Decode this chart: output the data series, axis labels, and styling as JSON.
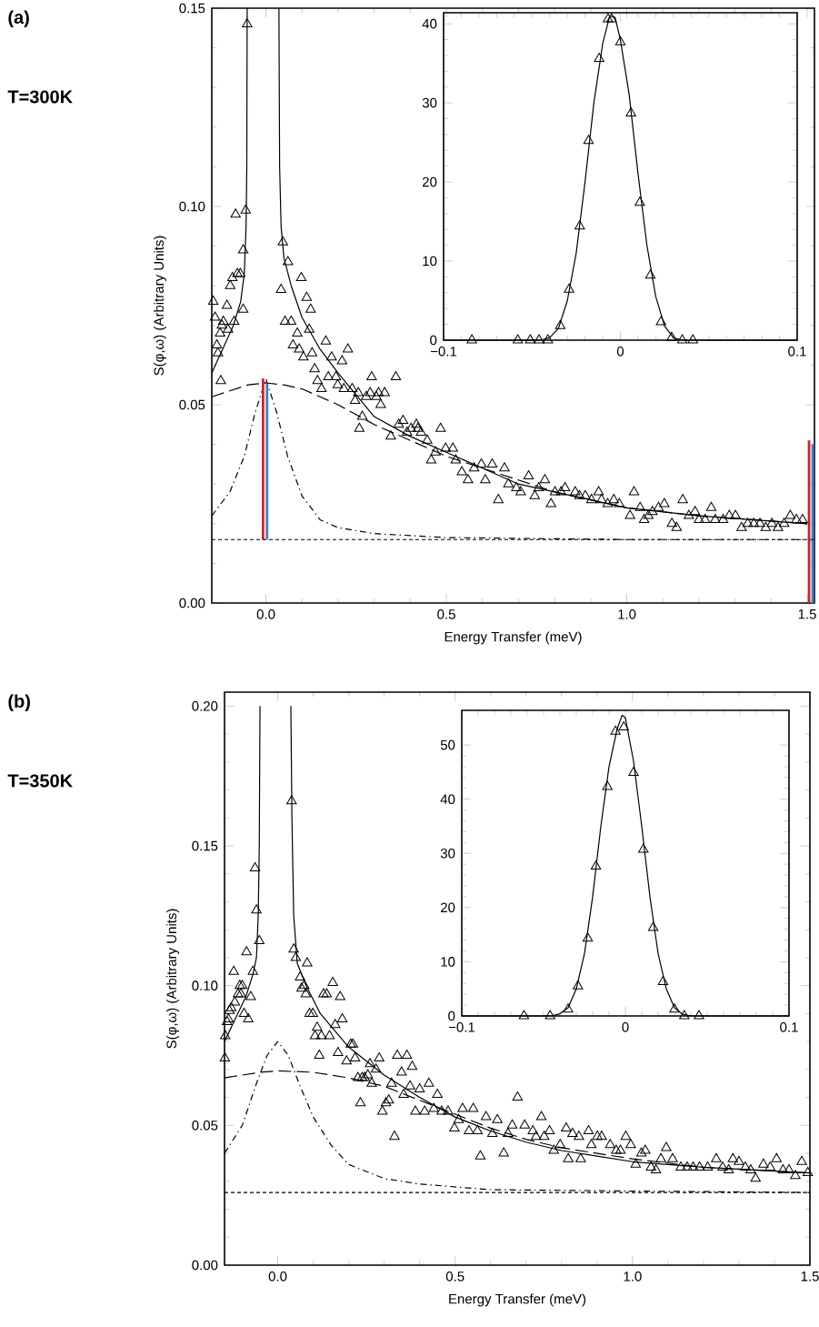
{
  "chart_data": [
    {
      "type": "scatter",
      "xlabel": "Energy Transfer (meV)",
      "ylabel": "S(φ,ω) (Arbitrary Units)",
      "annotations": [
        "(a)",
        "T=300K"
      ],
      "xlim": [
        -0.15,
        1.52
      ],
      "ylim": [
        0,
        0.15
      ],
      "xticks": [
        {
          "value": 0,
          "label": "0.0"
        },
        {
          "value": 0.5,
          "label": "0.5"
        },
        {
          "value": 1,
          "label": "1.0"
        },
        {
          "value": 1.5,
          "label": "1.5"
        }
      ],
      "yticks": [
        {
          "value": 0,
          "label": "0.00"
        },
        {
          "value": 0.05,
          "label": "0.05"
        },
        {
          "value": 0.1,
          "label": "0.10"
        },
        {
          "value": 0.15,
          "label": "0.15"
        }
      ],
      "ref_lines": [
        {
          "axis": "y",
          "value": 0.016,
          "line_style": "dotted",
          "color": "#000000"
        }
      ],
      "series": [
        {
          "type": "scatter",
          "marker": "triangle",
          "color": "#000000",
          "x": [
            -0.146,
            -0.141,
            -0.136,
            -0.133,
            -0.127,
            -0.122,
            -0.125,
            -0.108,
            -0.118,
            -0.105,
            -0.099,
            -0.093,
            -0.088,
            -0.079,
            -0.071,
            -0.063,
            -0.084,
            -0.056,
            -0.063,
            -0.052,
            0.042,
            0.047,
            0.061,
            0.053,
            0.07,
            0.075,
            0.087,
            0.092,
            0.098,
            0.104,
            0.113,
            0.12,
            0.124,
            0.128,
            0.135,
            0.143,
            0.154,
            0.166,
            0.173,
            0.182,
            0.194,
            0.199,
            0.211,
            0.216,
            0.227,
            0.239,
            0.247,
            0.256,
            0.259,
            0.267,
            0.278,
            0.289,
            0.293,
            0.306,
            0.312,
            0.318,
            0.329,
            0.346,
            0.36,
            0.368,
            0.38,
            0.391,
            0.402,
            0.417,
            0.421,
            0.43,
            0.447,
            0.458,
            0.47,
            0.484,
            0.498,
            0.518,
            0.526,
            0.543,
            0.56,
            0.577,
            0.597,
            0.608,
            0.627,
            0.644,
            0.661,
            0.672,
            0.694,
            0.706,
            0.728,
            0.745,
            0.756,
            0.773,
            0.79,
            0.801,
            0.818,
            0.829,
            0.857,
            0.869,
            0.885,
            0.902,
            0.922,
            0.93,
            0.947,
            0.964,
            0.979,
            1.009,
            1.02,
            1.037,
            1.048,
            1.06,
            1.071,
            1.088,
            1.104,
            1.125,
            1.138,
            1.155,
            1.172,
            1.189,
            1.2,
            1.217,
            1.234,
            1.245,
            1.267,
            1.284,
            1.301,
            1.318,
            1.335,
            1.352,
            1.369,
            1.385,
            1.402,
            1.419,
            1.436,
            1.453,
            1.47,
            1.487
          ],
          "values": [
            0.076,
            0.072,
            0.065,
            0.063,
            0.068,
            0.07,
            0.056,
            0.075,
            0.071,
            0.069,
            0.08,
            0.082,
            0.071,
            0.083,
            0.083,
            0.074,
            0.098,
            0.099,
            0.089,
            0.146,
            0.079,
            0.091,
            0.086,
            0.071,
            0.071,
            0.065,
            0.068,
            0.064,
            0.082,
            0.062,
            0.077,
            0.069,
            0.074,
            0.063,
            0.059,
            0.056,
            0.054,
            0.066,
            0.057,
            0.062,
            0.057,
            0.055,
            0.061,
            0.054,
            0.064,
            0.054,
            0.051,
            0.053,
            0.044,
            0.047,
            0.052,
            0.053,
            0.057,
            0.052,
            0.053,
            0.05,
            0.053,
            0.042,
            0.057,
            0.045,
            0.046,
            0.043,
            0.044,
            0.045,
            0.044,
            0.043,
            0.041,
            0.036,
            0.038,
            0.044,
            0.039,
            0.039,
            0.036,
            0.033,
            0.031,
            0.034,
            0.035,
            0.031,
            0.035,
            0.026,
            0.034,
            0.03,
            0.029,
            0.028,
            0.032,
            0.027,
            0.029,
            0.031,
            0.025,
            0.028,
            0.028,
            0.029,
            0.028,
            0.027,
            0.027,
            0.026,
            0.028,
            0.026,
            0.025,
            0.026,
            0.025,
            0.022,
            0.028,
            0.024,
            0.021,
            0.022,
            0.023,
            0.024,
            0.025,
            0.02,
            0.019,
            0.026,
            0.022,
            0.023,
            0.021,
            0.021,
            0.024,
            0.021,
            0.021,
            0.022,
            0.022,
            0.019,
            0.02,
            0.02,
            0.02,
            0.019,
            0.02,
            0.019,
            0.02,
            0.022,
            0.021,
            0.021
          ]
        },
        {
          "type": "line",
          "line_style": "solid",
          "color": "#000000",
          "x": [
            -0.15,
            -0.12,
            -0.09,
            -0.07,
            -0.06,
            -0.055,
            -0.053,
            -0.052,
            0,
            0.036,
            0.038,
            0.042,
            0.05,
            0.07,
            0.1,
            0.15,
            0.2,
            0.3,
            0.4,
            0.5,
            0.6,
            0.7,
            0.8,
            0.9,
            1.0,
            1.2,
            1.5
          ],
          "values": [
            0.058,
            0.064,
            0.07,
            0.076,
            0.083,
            0.095,
            0.11,
            0.15,
            null,
            0.15,
            0.11,
            0.095,
            0.087,
            0.08,
            0.072,
            0.064,
            0.058,
            0.047,
            0.042,
            0.038,
            0.034,
            0.03,
            0.028,
            0.026,
            0.024,
            0.022,
            0.02
          ]
        },
        {
          "type": "line",
          "line_style": "dashed",
          "color": "#000000",
          "x": [
            -0.15,
            -0.05,
            0,
            0.05,
            0.1,
            0.2,
            0.3,
            0.4,
            0.5,
            0.6,
            0.8,
            1.0,
            1.2,
            1.5
          ],
          "values": [
            0.052,
            0.055,
            0.0555,
            0.055,
            0.054,
            0.05,
            0.045,
            0.041,
            0.037,
            0.034,
            0.028,
            0.024,
            0.022,
            0.02
          ]
        },
        {
          "type": "line",
          "line_style": "dashdot",
          "color": "#000000",
          "x": [
            -0.15,
            -0.1,
            -0.06,
            -0.03,
            0,
            0.03,
            0.06,
            0.1,
            0.15,
            0.2,
            0.3,
            0.5,
            1.0,
            1.5
          ],
          "values": [
            0.022,
            0.028,
            0.037,
            0.048,
            0.0565,
            0.048,
            0.037,
            0.027,
            0.021,
            0.019,
            0.0175,
            0.0165,
            0.016,
            0.016
          ]
        },
        {
          "type": "line",
          "line_style": "solid",
          "color": "#d0202a",
          "x": [
            -0.008,
            -0.008
          ],
          "values": [
            0.016,
            0.0566
          ]
        },
        {
          "type": "line",
          "line_style": "solid",
          "color": "#2f86d6",
          "x": [
            0.003,
            0.003
          ],
          "values": [
            0.016,
            0.0554
          ]
        },
        {
          "type": "line",
          "line_style": "solid",
          "color": "#d0202a",
          "x": [
            1.505,
            1.505
          ],
          "values": [
            0,
            0.041
          ]
        },
        {
          "type": "line",
          "line_style": "solid",
          "color": "#2f86d6",
          "x": [
            1.515,
            1.515
          ],
          "values": [
            0,
            0.04
          ]
        }
      ]
    },
    {
      "type": "scatter",
      "xlim": [
        -0.1,
        0.1
      ],
      "ylim": [
        0,
        41.4
      ],
      "xticks": [
        {
          "value": -0.1,
          "label": "−0.1"
        },
        0,
        0.1
      ],
      "yticks": [
        0,
        10,
        20,
        30,
        40
      ],
      "series": [
        {
          "type": "scatter",
          "marker": "triangle",
          "color": "#000000",
          "x": [
            -0.084,
            -0.058,
            -0.051,
            -0.046,
            -0.041,
            -0.034,
            -0.029,
            -0.023,
            -0.018,
            -0.012,
            -0.007,
            -0.005,
            0.0,
            0.006,
            0.011,
            0.017,
            0.023,
            0.029,
            0.035,
            0.041
          ],
          "values": [
            0,
            0,
            0,
            0,
            0,
            1.8,
            6.4,
            14.4,
            25.2,
            35.6,
            40.6,
            40.6,
            37.7,
            28.7,
            17.4,
            8.2,
            2.3,
            0.3,
            0,
            0
          ]
        },
        {
          "type": "line",
          "line_style": "solid",
          "color": "#000000",
          "x": [
            -0.1,
            -0.045,
            -0.04,
            -0.035,
            -0.03,
            -0.025,
            -0.02,
            -0.015,
            -0.01,
            -0.006,
            -0.003,
            0,
            0.005,
            0.01,
            0.015,
            0.02,
            0.025,
            0.03,
            0.035,
            0.1
          ],
          "values": [
            0,
            0,
            0.3,
            1.5,
            5,
            11,
            20,
            30,
            37.5,
            41,
            40.8,
            38,
            31,
            21,
            12,
            5.5,
            1.8,
            0.3,
            0,
            0
          ]
        }
      ]
    },
    {
      "type": "scatter",
      "xlabel": "Energy Transfer (meV)",
      "ylabel": "S(φ,ω) (Arbitrary Units)",
      "annotations": [
        "(b)",
        "T=350K"
      ],
      "xlim": [
        -0.15,
        1.5
      ],
      "ylim": [
        0,
        0.205
      ],
      "xticks": [
        {
          "value": 0,
          "label": "0.0"
        },
        {
          "value": 0.5,
          "label": "0.5"
        },
        {
          "value": 1,
          "label": "1.0"
        },
        {
          "value": 1.5,
          "label": "1.5"
        }
      ],
      "yticks": [
        {
          "value": 0,
          "label": "0.00"
        },
        {
          "value": 0.05,
          "label": "0.05"
        },
        {
          "value": 0.1,
          "label": "0.10"
        },
        {
          "value": 0.15,
          "label": "0.15"
        },
        {
          "value": 0.2,
          "label": "0.20"
        }
      ],
      "ref_lines": [
        {
          "axis": "y",
          "value": 0.026,
          "line_style": "dotted",
          "color": "#000000"
        }
      ],
      "series": [
        {
          "type": "scatter",
          "marker": "triangle",
          "color": "#000000",
          "x": [
            -0.149,
            -0.148,
            -0.143,
            -0.139,
            -0.136,
            -0.131,
            -0.124,
            -0.121,
            -0.112,
            -0.107,
            -0.104,
            -0.1,
            -0.095,
            -0.088,
            -0.083,
            -0.076,
            -0.07,
            -0.064,
            -0.06,
            -0.052,
            0.039,
            0.045,
            0.051,
            0.063,
            0.067,
            0.075,
            0.079,
            0.083,
            0.09,
            0.099,
            0.105,
            0.111,
            0.117,
            0.123,
            0.129,
            0.138,
            0.146,
            0.155,
            0.162,
            0.17,
            0.176,
            0.182,
            0.194,
            0.206,
            0.212,
            0.218,
            0.226,
            0.233,
            0.238,
            0.245,
            0.254,
            0.26,
            0.265,
            0.277,
            0.286,
            0.295,
            0.305,
            0.313,
            0.321,
            0.329,
            0.337,
            0.349,
            0.355,
            0.364,
            0.373,
            0.379,
            0.388,
            0.4,
            0.414,
            0.426,
            0.44,
            0.45,
            0.462,
            0.48,
            0.498,
            0.51,
            0.521,
            0.539,
            0.551,
            0.563,
            0.571,
            0.587,
            0.605,
            0.619,
            0.637,
            0.649,
            0.661,
            0.676,
            0.696,
            0.719,
            0.728,
            0.743,
            0.751,
            0.766,
            0.778,
            0.796,
            0.813,
            0.819,
            0.831,
            0.849,
            0.854,
            0.876,
            0.884,
            0.901,
            0.913,
            0.937,
            0.954,
            0.966,
            0.981,
            0.995,
            1.009,
            1.025,
            1.036,
            1.052,
            1.066,
            1.08,
            1.095,
            1.113,
            1.136,
            1.154,
            1.171,
            1.189,
            1.212,
            1.236,
            1.254,
            1.271,
            1.283,
            1.3,
            1.318,
            1.333,
            1.347,
            1.369,
            1.388,
            1.406,
            1.424,
            1.441,
            1.459,
            1.477,
            1.494
          ],
          "values": [
            0.074,
            0.082,
            0.087,
            0.088,
            0.091,
            0.092,
            0.105,
            0.094,
            0.097,
            0.1,
            0.097,
            0.1,
            0.09,
            0.112,
            0.088,
            0.096,
            0.105,
            0.142,
            0.127,
            0.116,
            0.166,
            0.113,
            0.11,
            0.103,
            0.099,
            0.1,
            0.097,
            0.108,
            0.09,
            0.09,
            0.082,
            0.085,
            0.075,
            0.082,
            0.097,
            0.097,
            0.082,
            0.101,
            0.086,
            0.076,
            0.096,
            0.088,
            0.073,
            0.079,
            0.079,
            0.074,
            0.067,
            0.058,
            0.067,
            0.067,
            0.068,
            0.072,
            0.065,
            0.07,
            0.074,
            0.055,
            0.058,
            0.059,
            0.065,
            0.046,
            0.075,
            0.069,
            0.061,
            0.075,
            0.064,
            0.071,
            0.055,
            0.063,
            0.055,
            0.065,
            0.056,
            0.061,
            0.055,
            0.055,
            0.049,
            0.052,
            0.056,
            0.048,
            0.056,
            0.048,
            0.039,
            0.053,
            0.047,
            0.052,
            0.04,
            0.047,
            0.05,
            0.06,
            0.05,
            0.048,
            0.046,
            0.053,
            0.046,
            0.048,
            0.041,
            0.043,
            0.049,
            0.038,
            0.047,
            0.046,
            0.038,
            0.048,
            0.043,
            0.046,
            0.046,
            0.043,
            0.041,
            0.041,
            0.046,
            0.043,
            0.036,
            0.04,
            0.041,
            0.035,
            0.034,
            0.038,
            0.042,
            0.038,
            0.035,
            0.035,
            0.035,
            0.035,
            0.035,
            0.038,
            0.035,
            0.034,
            0.038,
            0.037,
            0.035,
            0.034,
            0.031,
            0.036,
            0.035,
            0.038,
            0.034,
            0.034,
            0.032,
            0.037,
            0.033
          ]
        },
        {
          "type": "line",
          "line_style": "solid",
          "color": "#000000",
          "x": [
            -0.15,
            -0.12,
            -0.09,
            -0.07,
            -0.06,
            -0.055,
            -0.052,
            -0.05,
            0,
            0.037,
            0.04,
            0.045,
            0.055,
            0.08,
            0.12,
            0.2,
            0.3,
            0.4,
            0.5,
            0.6,
            0.7,
            0.8,
            0.9,
            1.0,
            1.2,
            1.5
          ],
          "values": [
            0.08,
            0.088,
            0.096,
            0.104,
            0.11,
            0.125,
            0.15,
            0.2,
            null,
            0.2,
            0.16,
            0.125,
            0.108,
            0.1,
            0.09,
            0.078,
            0.068,
            0.06,
            0.053,
            0.048,
            0.044,
            0.041,
            0.039,
            0.037,
            0.035,
            0.033
          ]
        },
        {
          "type": "line",
          "line_style": "dashed",
          "color": "#000000",
          "x": [
            -0.15,
            -0.05,
            0,
            0.1,
            0.2,
            0.3,
            0.4,
            0.5,
            0.6,
            0.7,
            0.8,
            1.0,
            1.2,
            1.5
          ],
          "values": [
            0.067,
            0.069,
            0.0695,
            0.069,
            0.067,
            0.064,
            0.059,
            0.054,
            0.049,
            0.045,
            0.042,
            0.038,
            0.035,
            0.033
          ]
        },
        {
          "type": "line",
          "line_style": "dashdot",
          "color": "#000000",
          "x": [
            -0.15,
            -0.1,
            -0.06,
            -0.03,
            0,
            0.03,
            0.06,
            0.1,
            0.15,
            0.2,
            0.3,
            0.4,
            0.6,
            1.0,
            1.5
          ],
          "values": [
            0.04,
            0.05,
            0.065,
            0.075,
            0.08,
            0.075,
            0.065,
            0.053,
            0.043,
            0.036,
            0.031,
            0.029,
            0.027,
            0.0265,
            0.026
          ]
        }
      ]
    },
    {
      "type": "scatter",
      "xlim": [
        -0.1,
        0.1
      ],
      "ylim": [
        0,
        56.4
      ],
      "xticks": [
        {
          "value": -0.1,
          "label": "−0.1"
        },
        0,
        0.1
      ],
      "yticks": [
        0,
        10,
        20,
        30,
        40,
        50
      ],
      "series": [
        {
          "type": "scatter",
          "marker": "triangle",
          "color": "#000000",
          "x": [
            -0.062,
            -0.046,
            -0.035,
            -0.029,
            -0.023,
            -0.018,
            -0.011,
            -0.006,
            -0.001,
            0.005,
            0.011,
            0.017,
            0.023,
            0.03,
            0.036,
            0.045
          ],
          "values": [
            0,
            0,
            1.2,
            5.5,
            14.3,
            27.6,
            42.3,
            52.5,
            53.3,
            44.9,
            30.7,
            16.3,
            6.3,
            1.2,
            0,
            0
          ]
        },
        {
          "type": "line",
          "line_style": "solid",
          "color": "#000000",
          "x": [
            -0.1,
            -0.045,
            -0.04,
            -0.035,
            -0.03,
            -0.025,
            -0.02,
            -0.015,
            -0.01,
            -0.005,
            -0.002,
            0,
            0.005,
            0.01,
            0.015,
            0.02,
            0.025,
            0.03,
            0.035,
            0.04,
            0.1
          ],
          "values": [
            0,
            0,
            0.4,
            1.5,
            5,
            11.5,
            22,
            35,
            46,
            53,
            55.5,
            55,
            47,
            35,
            22,
            11.5,
            5,
            1.5,
            0.3,
            0,
            0
          ]
        }
      ]
    }
  ]
}
